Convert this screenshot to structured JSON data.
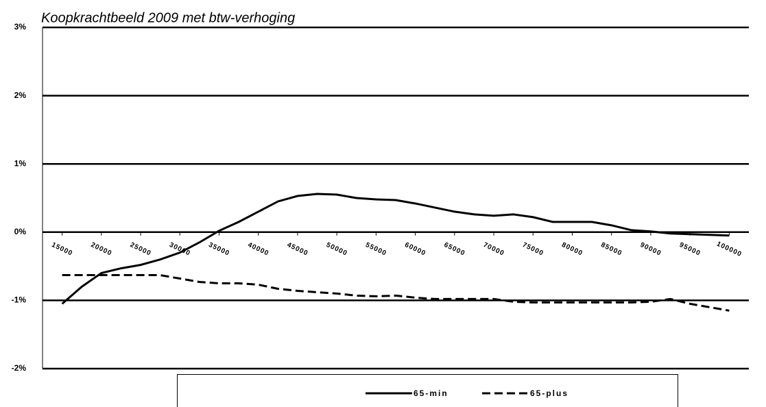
{
  "chart_data": {
    "type": "line",
    "title": "Koopkrachtbeeld 2009 met btw-verhoging",
    "x": [
      15000,
      17500,
      20000,
      22500,
      25000,
      27500,
      30000,
      32500,
      35000,
      37500,
      40000,
      42500,
      45000,
      47500,
      50000,
      52500,
      55000,
      57500,
      60000,
      62500,
      65000,
      67500,
      70000,
      72500,
      75000,
      77500,
      80000,
      82500,
      85000,
      87500,
      90000,
      92500,
      95000,
      97500,
      100000
    ],
    "series": [
      {
        "name": "65-min",
        "color": "#000000",
        "dash": false,
        "values": [
          -1.05,
          -0.8,
          -0.6,
          -0.53,
          -0.48,
          -0.4,
          -0.3,
          -0.15,
          0.02,
          0.15,
          0.3,
          0.45,
          0.53,
          0.56,
          0.55,
          0.5,
          0.48,
          0.47,
          0.42,
          0.36,
          0.3,
          0.26,
          0.24,
          0.26,
          0.22,
          0.15,
          0.15,
          0.15,
          0.1,
          0.03,
          0.01,
          -0.02,
          -0.03,
          -0.04,
          -0.05
        ]
      },
      {
        "name": "65-plus",
        "color": "#000000",
        "dash": true,
        "values": [
          -0.63,
          -0.63,
          -0.63,
          -0.63,
          -0.63,
          -0.63,
          -0.68,
          -0.73,
          -0.75,
          -0.75,
          -0.77,
          -0.83,
          -0.86,
          -0.88,
          -0.9,
          -0.93,
          -0.94,
          -0.93,
          -0.96,
          -0.98,
          -0.98,
          -0.98,
          -0.98,
          -1.02,
          -1.03,
          -1.03,
          -1.03,
          -1.03,
          -1.03,
          -1.03,
          -1.02,
          -0.98,
          -1.05,
          -1.1,
          -1.15
        ]
      }
    ],
    "xlim": [
      12500,
      102500
    ],
    "xticks": [
      15000,
      20000,
      25000,
      30000,
      35000,
      40000,
      45000,
      50000,
      55000,
      60000,
      65000,
      70000,
      75000,
      80000,
      85000,
      90000,
      95000,
      100000
    ],
    "ylim": [
      -2,
      3
    ],
    "yticks": [
      {
        "value": -2,
        "label": "-2%"
      },
      {
        "value": -1,
        "label": "-1%"
      },
      {
        "value": 0,
        "label": "0%"
      },
      {
        "value": 1,
        "label": "1%"
      },
      {
        "value": 2,
        "label": "2%"
      },
      {
        "value": 3,
        "label": "3%"
      }
    ],
    "grid": true,
    "legend": "bottom"
  }
}
